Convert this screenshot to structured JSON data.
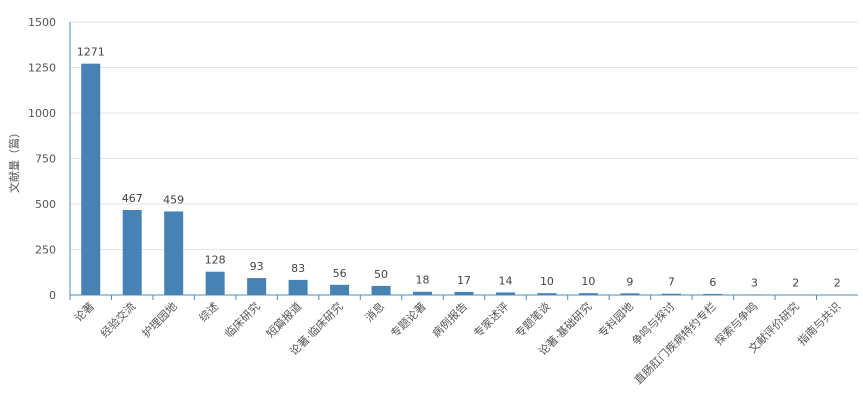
{
  "chart_data": {
    "type": "bar",
    "y_label": "文献量（篇）",
    "categories": [
      "论著",
      "经验交流",
      "护理园地",
      "综述",
      "临床研究",
      "短篇报道",
      "论著·临床研究",
      "消息",
      "专题论著",
      "病例报告",
      "专家述评",
      "专题笔谈",
      "论著·基础研究",
      "专科园地",
      "争鸣与探讨",
      "直肠肛门疾病特约专栏",
      "探索与争鸣",
      "文献评价研究",
      "指南与共识"
    ],
    "values": [
      1271,
      467,
      459,
      128,
      93,
      83,
      56,
      50,
      18,
      17,
      14,
      10,
      10,
      9,
      7,
      6,
      3,
      2,
      2
    ],
    "color": "#4682b4",
    "ylim": [
      0,
      1500
    ],
    "yticks": [
      0,
      250,
      500,
      750,
      1000,
      1250,
      1500
    ],
    "grid": true
  }
}
